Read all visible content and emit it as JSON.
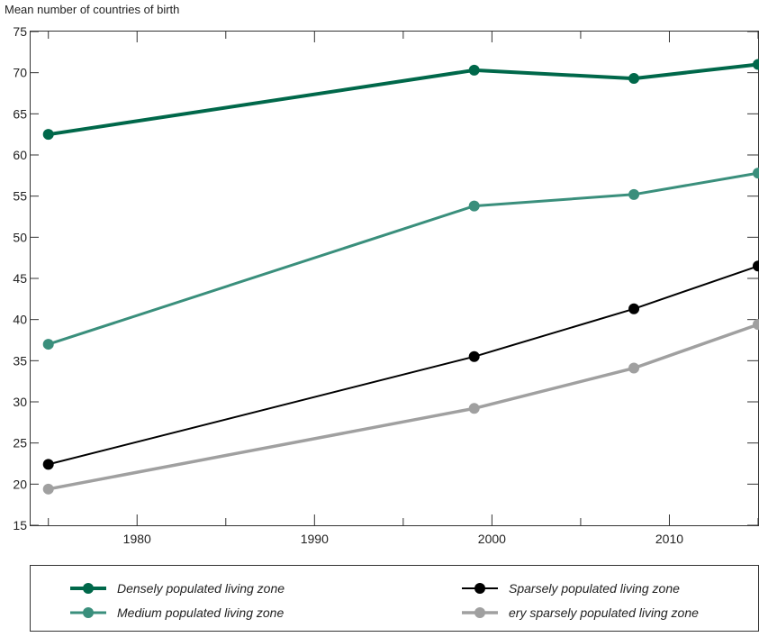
{
  "chart_data": {
    "type": "line",
    "ylabel": "Mean number of countries of birth",
    "xlabel": "",
    "xlim": [
      1974,
      2015
    ],
    "ylim": [
      15,
      75
    ],
    "x_ticks_major": [
      1980,
      1990,
      2000,
      2010
    ],
    "x_ticks_minor": [
      1975,
      1985,
      1995,
      2005,
      2015
    ],
    "y_ticks": [
      15,
      20,
      25,
      30,
      35,
      40,
      45,
      50,
      55,
      60,
      65,
      70,
      75
    ],
    "grid": false,
    "legend_position": "bottom",
    "series": [
      {
        "name": "Densely populated living zone",
        "color": "#00684a",
        "points": [
          [
            1975,
            62.5
          ],
          [
            1999,
            70.3
          ],
          [
            2008,
            69.3
          ],
          [
            2015,
            71.0
          ]
        ]
      },
      {
        "name": "Medium populated living zone",
        "color": "#3a8f7c",
        "points": [
          [
            1975,
            37.0
          ],
          [
            1999,
            53.8
          ],
          [
            2008,
            55.2
          ],
          [
            2015,
            57.8
          ]
        ]
      },
      {
        "name": "Sparsely populated living zone",
        "color": "#000000",
        "points": [
          [
            1975,
            22.4
          ],
          [
            1999,
            35.5
          ],
          [
            2008,
            41.3
          ],
          [
            2015,
            46.5
          ]
        ]
      },
      {
        "name": "ery sparsely populated living zone",
        "color": "#a0a0a0",
        "points": [
          [
            1975,
            19.4
          ],
          [
            1999,
            29.2
          ],
          [
            2008,
            34.1
          ],
          [
            2015,
            39.4
          ]
        ]
      }
    ]
  }
}
